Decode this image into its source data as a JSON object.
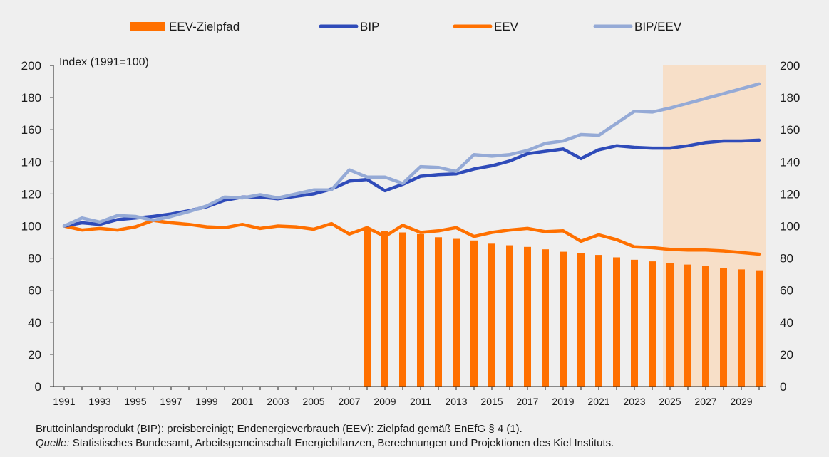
{
  "chart_data": {
    "type": "bar+line",
    "title": "",
    "ylabel": "Index (1991=100)",
    "ylim": [
      0,
      200
    ],
    "yticks": [
      0,
      20,
      40,
      60,
      80,
      100,
      120,
      140,
      160,
      180,
      200
    ],
    "xlim": [
      1991,
      2030
    ],
    "xticks": [
      "1991",
      "1993",
      "1995",
      "1997",
      "1999",
      "2001",
      "2003",
      "2005",
      "2007",
      "2009",
      "2011",
      "2013",
      "2015",
      "2017",
      "2019",
      "2021",
      "2023",
      "2025",
      "2027",
      "2029"
    ],
    "projection_shading": {
      "from": 2025,
      "to": 2030,
      "color": "#f7dfc8"
    },
    "legend": [
      {
        "label": "EEV-Zielpfad",
        "kind": "bar",
        "color": "#ff7000"
      },
      {
        "label": "BIP",
        "kind": "line",
        "color": "#2f4bb9"
      },
      {
        "label": "EEV",
        "kind": "line",
        "color": "#ff7000"
      },
      {
        "label": "BIP/EEV",
        "kind": "line",
        "color": "#95aad6"
      }
    ],
    "bars": {
      "name": "EEV-Zielpfad",
      "color": "#ff7000",
      "x": [
        2008,
        2009,
        2010,
        2011,
        2012,
        2013,
        2014,
        2015,
        2016,
        2017,
        2018,
        2019,
        2020,
        2021,
        2022,
        2023,
        2024,
        2025,
        2026,
        2027,
        2028,
        2029,
        2030
      ],
      "values": [
        99,
        97,
        96,
        95,
        93,
        92,
        91,
        89,
        88,
        87,
        85.5,
        84,
        83,
        82,
        80.5,
        79,
        78,
        77,
        76,
        75,
        74,
        73,
        72
      ]
    },
    "series": [
      {
        "name": "BIP",
        "color": "#2f4bb9",
        "x": [
          1991,
          1992,
          1993,
          1994,
          1995,
          1996,
          1997,
          1998,
          1999,
          2000,
          2001,
          2002,
          2003,
          2004,
          2005,
          2006,
          2007,
          2008,
          2009,
          2010,
          2011,
          2012,
          2013,
          2014,
          2015,
          2016,
          2017,
          2018,
          2019,
          2020,
          2021,
          2022,
          2023,
          2024,
          2025,
          2026,
          2027,
          2028,
          2029,
          2030
        ],
        "values": [
          100,
          102,
          101,
          104,
          105,
          106,
          107.5,
          109.5,
          112,
          116,
          118,
          118,
          117,
          118.5,
          120,
          123,
          128,
          129,
          122,
          126,
          131,
          132,
          132.5,
          135.5,
          137.5,
          140.5,
          145,
          146.5,
          148,
          142,
          147.5,
          150,
          149,
          148.5,
          148.5,
          150,
          152,
          153,
          153,
          153.5
        ]
      },
      {
        "name": "EEV",
        "color": "#ff7000",
        "x": [
          1991,
          1992,
          1993,
          1994,
          1995,
          1996,
          1997,
          1998,
          1999,
          2000,
          2001,
          2002,
          2003,
          2004,
          2005,
          2006,
          2007,
          2008,
          2009,
          2010,
          2011,
          2012,
          2013,
          2014,
          2015,
          2016,
          2017,
          2018,
          2019,
          2020,
          2021,
          2022,
          2023,
          2024,
          2025,
          2026,
          2027,
          2028,
          2029,
          2030
        ],
        "values": [
          100,
          97.5,
          98.5,
          97.5,
          99.5,
          103.5,
          102,
          101,
          99.5,
          99,
          101,
          98.5,
          100,
          99.5,
          98,
          101.5,
          95,
          99,
          93.5,
          100.5,
          96,
          97,
          99,
          93.5,
          96,
          97.5,
          98.5,
          96.5,
          97,
          90.5,
          94.5,
          91.5,
          87,
          86.5,
          85.5,
          85,
          85,
          84.5,
          83.5,
          82.5
        ]
      },
      {
        "name": "BIP/EEV",
        "color": "#95aad6",
        "x": [
          1991,
          1992,
          1993,
          1994,
          1995,
          1996,
          1997,
          1998,
          1999,
          2000,
          2001,
          2002,
          2003,
          2004,
          2005,
          2006,
          2007,
          2008,
          2009,
          2010,
          2011,
          2012,
          2013,
          2014,
          2015,
          2016,
          2017,
          2018,
          2019,
          2020,
          2021,
          2022,
          2023,
          2024,
          2025,
          2026,
          2027,
          2028,
          2029,
          2030
        ],
        "values": [
          100,
          105,
          102.5,
          106.5,
          106,
          103.5,
          106,
          109,
          112.5,
          118,
          117.5,
          119.5,
          117.5,
          120,
          122.5,
          122.5,
          135,
          130.5,
          130.5,
          126.5,
          137,
          136.5,
          134,
          144.5,
          143.5,
          144.5,
          147,
          151.5,
          153,
          157,
          156.5,
          164,
          171.5,
          171,
          173.5,
          176.5,
          179.5,
          182.5,
          185.5,
          188.5
        ]
      }
    ]
  },
  "footnote": {
    "line1": "Bruttoinlandsprodukt (BIP): preisbereinigt; Endenergieverbrauch (EEV): Zielpfad gemäß EnEfG § 4 (1).",
    "source_label": "Quelle:",
    "source_text": " Statistisches Bundesamt, Arbeitsgemeinschaft Energiebilanzen, Berechnungen und Projektionen des Kiel Instituts."
  }
}
